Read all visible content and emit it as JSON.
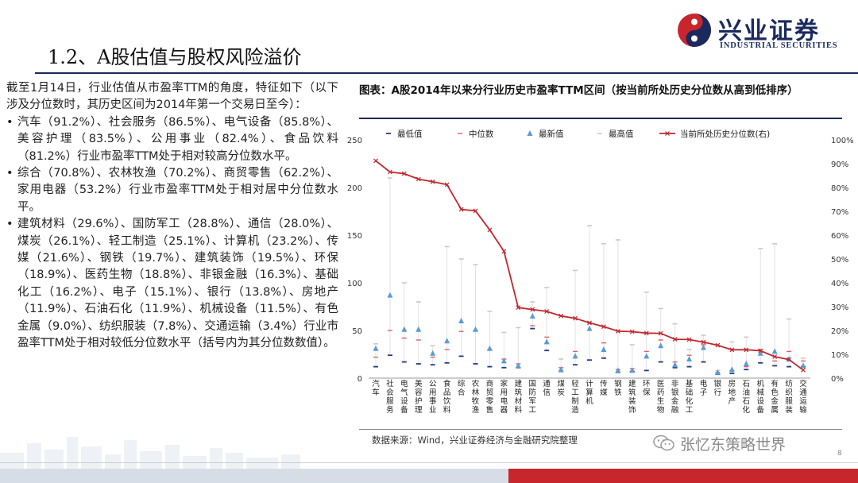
{
  "header": {
    "logo_cn": "兴业证券",
    "logo_en": "INDUSTRIAL SECURITIES",
    "title": "1.2、A股估值与股权风险溢价"
  },
  "text": {
    "intro": "截至1月14日，行业估值从市盈率TTM的角度，特征如下（以下涉及分位数时，其历史区间为2014年第一个交易日至今）：",
    "bullets": [
      "汽车（91.2%）、社会服务（86.5%）、电气设备（85.8%）、美容护理（83.5%）、公用事业（82.4%）、食品饮料（81.2%）行业市盈率TTM处于相对较高分位数水平。",
      "综合（70.8%）、农林牧渔（70.2%）、商贸零售（62.2%）、家用电器（53.2%）行业市盈率TTM处于相对居中分位数水平。",
      "建筑材料（29.6%）、国防军工（28.8%）、通信（28.0%）、煤炭（26.1%）、轻工制造（25.1%）、计算机（23.2%）、传媒（21.6%）、钢铁（19.7%）、建筑装饰（19.5%）、环保（18.9%）、医药生物（18.8%）、非银金融（16.3%）、基础化工（16.2%）、电子（15.1%）、银行（13.8%）、房地产（11.9%）、石油石化（11.9%）、机械设备（11.5%）、有色金属（9.0%）、纺织服装（7.8%）、交通运输（3.4%）行业市盈率TTM处于相对较低分位数水平（括号内为其分位数数值）。"
    ]
  },
  "chart": {
    "title": "图表：A股2014年以来分行业历史市盈率TTM区间（按当前所处历史分位数从高到低排序）",
    "source": "数据来源：Wind，兴业证券经济与金融研究院整理",
    "watermark": "张忆东策略世界",
    "page_number": "8"
  },
  "chart_data": {
    "type": "line",
    "title": "图表：A股2014年以来分行业历史市盈率TTM区间（按当前所处历史分位数从高到低排序）",
    "legend": [
      "最低值",
      "中位数",
      "最新值",
      "最高值",
      "当前所处历史分位数(右)"
    ],
    "legend_position": "top",
    "colors": {
      "min": "#1f3d7a",
      "median": "#e06060",
      "latest": "#5b9bd5",
      "max": "#c9c9c9",
      "percentile": "#c0282e"
    },
    "categories": [
      "汽车",
      "社会服务",
      "电气设备",
      "美容护理",
      "公用事业",
      "食品饮料",
      "综合",
      "农林牧渔",
      "商贸零售",
      "家用电器",
      "建筑材料",
      "国防军工",
      "通信",
      "煤炭",
      "轻工制造",
      "计算机",
      "传媒",
      "钢铁",
      "建筑装饰",
      "环保",
      "医药生物",
      "非银金融",
      "基础化工",
      "电子",
      "银行",
      "房地产",
      "石油石化",
      "机械设备",
      "有色金属",
      "纺织服装",
      "交通运输"
    ],
    "y_left": {
      "ticks": [
        0,
        50,
        100,
        150,
        200,
        250
      ],
      "ylim": [
        0,
        250
      ]
    },
    "y_right": {
      "ticks": [
        "0%",
        "10%",
        "20%",
        "30%",
        "40%",
        "50%",
        "60%",
        "70%",
        "80%",
        "90%",
        "100%"
      ],
      "ylim": [
        0,
        100
      ]
    },
    "series": [
      {
        "name": "最低值",
        "values": [
          12,
          24,
          17,
          15,
          14,
          16,
          23,
          15,
          12,
          11,
          11,
          52,
          29,
          7,
          14,
          19,
          21,
          6,
          7,
          8,
          17,
          11,
          12,
          17,
          4,
          5,
          9,
          16,
          13,
          12,
          12
        ]
      },
      {
        "name": "中位数",
        "values": [
          22,
          50,
          42,
          40,
          22,
          30,
          49,
          50,
          30,
          20,
          15,
          55,
          43,
          11,
          28,
          58,
          37,
          9,
          10,
          28,
          40,
          17,
          24,
          35,
          6,
          8,
          12,
          30,
          18,
          28,
          18
        ]
      },
      {
        "name": "最新值",
        "values": [
          31,
          87,
          51,
          51,
          26,
          39,
          60,
          51,
          31,
          18,
          13,
          65,
          38,
          9,
          23,
          52,
          30,
          8,
          8,
          23,
          34,
          14,
          20,
          32,
          6,
          9,
          15,
          26,
          28,
          20,
          13
        ]
      },
      {
        "name": "最高值",
        "values": [
          36,
          210,
          100,
          80,
          34,
          138,
          125,
          119,
          70,
          48,
          53,
          80,
          95,
          20,
          113,
          160,
          141,
          145,
          35,
          90,
          73,
          57,
          30,
          45,
          8,
          38,
          43,
          136,
          141,
          62,
          21
        ]
      },
      {
        "name": "当前所处历史分位数(右)",
        "values": [
          91.2,
          86.5,
          85.8,
          83.5,
          82.4,
          81.2,
          70.8,
          70.2,
          62.2,
          53.2,
          29.6,
          28.8,
          28.0,
          26.1,
          25.1,
          23.2,
          21.6,
          19.7,
          19.5,
          18.9,
          18.8,
          16.3,
          16.2,
          15.1,
          13.8,
          11.9,
          11.9,
          11.5,
          9.0,
          7.8,
          3.4
        ]
      }
    ]
  }
}
